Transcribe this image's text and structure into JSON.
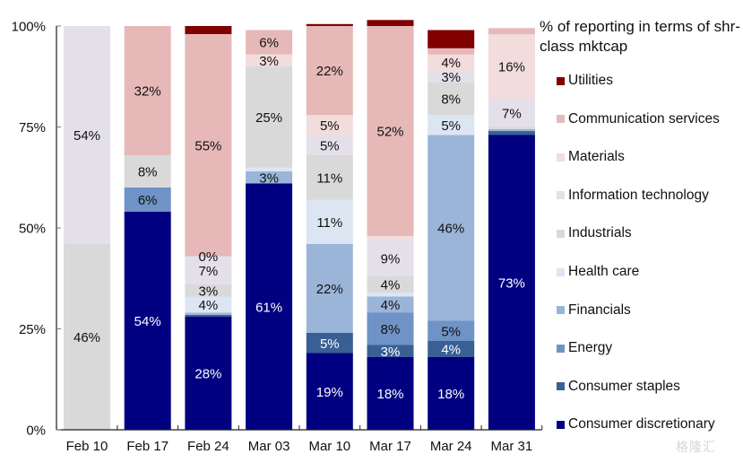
{
  "chart_data": {
    "type": "bar",
    "stacked": true,
    "title": "",
    "xlabel": "",
    "ylabel": "",
    "ylim": [
      0,
      100
    ],
    "yticks": [
      "0%",
      "25%",
      "50%",
      "75%",
      "100%"
    ],
    "ytick_values": [
      0,
      25,
      50,
      75,
      100
    ],
    "grid": false,
    "legend_title": "% of reporting in terms of shr-class mktcap",
    "legend_position": "right",
    "categories": [
      "Feb 10",
      "Feb 17",
      "Feb 24",
      "Mar 03",
      "Mar 10",
      "Mar 17",
      "Mar 24",
      "Mar 31"
    ],
    "series": [
      {
        "name": "Consumer discretionary",
        "color": "#000080",
        "label_color": "#ffffff",
        "values": [
          0,
          54,
          28,
          61,
          19,
          18,
          18,
          73
        ],
        "labels": [
          "",
          "54%",
          "28%",
          "61%",
          "19%",
          "18%",
          "18%",
          "73%"
        ]
      },
      {
        "name": "Consumer staples",
        "color": "#3a5f95",
        "label_color": "#ffffff",
        "values": [
          0,
          0,
          0.5,
          0,
          5,
          3,
          4,
          1
        ],
        "labels": [
          "",
          "",
          "",
          "",
          "5%",
          "3%",
          "4%",
          ""
        ]
      },
      {
        "name": "Energy",
        "color": "#6f93c6",
        "label_color": "#111111",
        "values": [
          0,
          6,
          0,
          0,
          0,
          8,
          5,
          0
        ],
        "labels": [
          "",
          "6%",
          "",
          "",
          "",
          "8%",
          "5%",
          ""
        ]
      },
      {
        "name": "Financials",
        "color": "#9bb5d9",
        "label_color": "#111111",
        "values": [
          0,
          0,
          0.5,
          3,
          22,
          4,
          46,
          0.5
        ],
        "labels": [
          "",
          "",
          "",
          "3%",
          "22%",
          "4%",
          "46%",
          ""
        ]
      },
      {
        "name": "Health care",
        "color": "#dce6f3",
        "label_color": "#111111",
        "values": [
          0,
          0,
          4,
          1,
          11,
          1,
          5,
          0
        ],
        "labels": [
          "",
          "",
          "4%",
          "",
          "11%",
          "",
          "5%",
          ""
        ]
      },
      {
        "name": "Industrials",
        "color": "#d9d9d9",
        "label_color": "#111111",
        "values": [
          46,
          8,
          3,
          25,
          11,
          4,
          8,
          0.5
        ],
        "labels": [
          "46%",
          "8%",
          "3%",
          "25%",
          "11%",
          "4%",
          "8%",
          ""
        ]
      },
      {
        "name": "Information technology",
        "color": "#e4e0ea",
        "label_color": "#111111",
        "values": [
          54,
          0,
          7,
          0,
          5,
          9,
          3,
          7
        ],
        "labels": [
          "54%",
          "",
          "7%",
          "",
          "5%",
          "9%",
          "3%",
          "7%"
        ]
      },
      {
        "name": "Materials",
        "color": "#f2dcdc",
        "label_color": "#111111",
        "values": [
          0,
          0,
          0,
          3,
          5,
          1,
          4,
          16
        ],
        "labels": [
          "",
          "",
          "0%",
          "3%",
          "5%",
          "",
          "4%",
          "16%"
        ]
      },
      {
        "name": "Communication services",
        "color": "#e6b8b8",
        "label_color": "#111111",
        "values": [
          0,
          32,
          55,
          6,
          22,
          52,
          1.5,
          1.5
        ],
        "labels": [
          "",
          "32%",
          "55%",
          "6%",
          "22%",
          "52%",
          "",
          ""
        ]
      },
      {
        "name": "Utilities",
        "color": "#800000",
        "label_color": "#ffffff",
        "values": [
          0,
          0,
          2,
          0,
          0.5,
          1.5,
          4.5,
          0
        ],
        "labels": [
          "",
          "",
          "",
          "",
          "",
          "",
          "",
          ""
        ]
      }
    ]
  },
  "watermark": "格隆汇"
}
